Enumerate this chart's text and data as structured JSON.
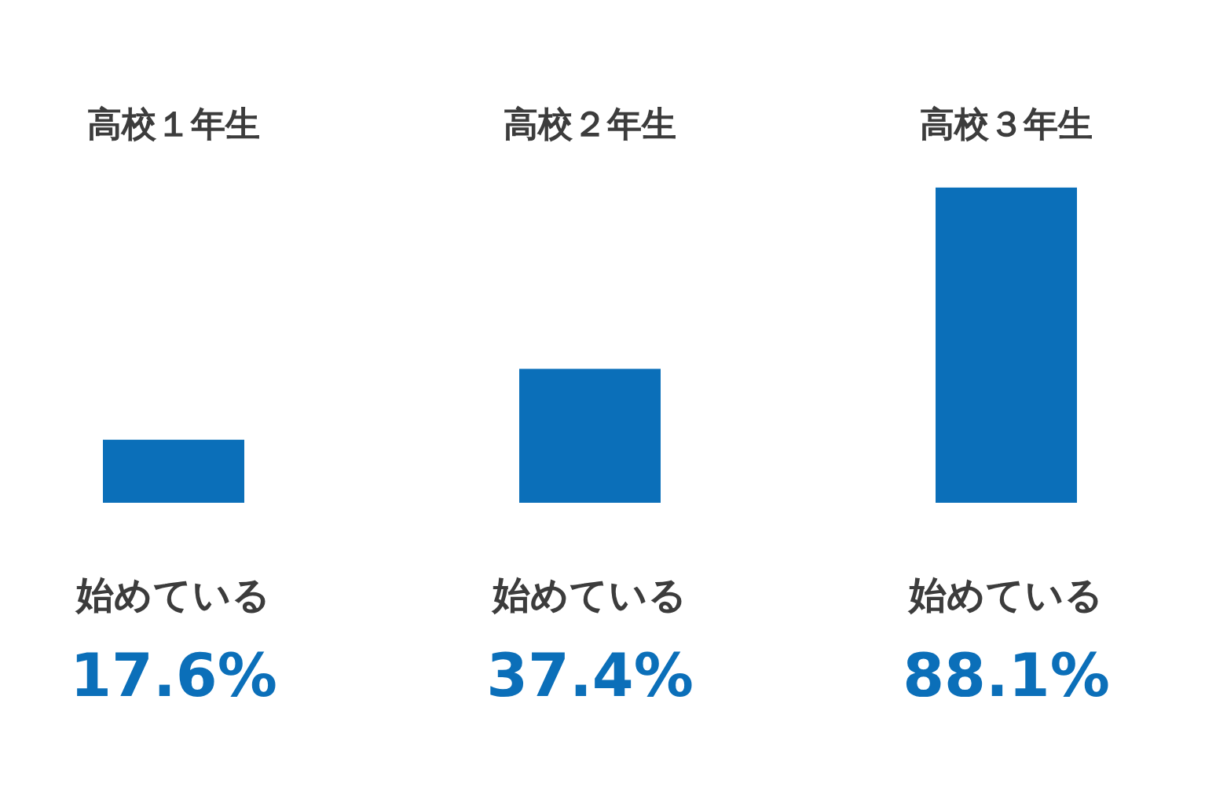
{
  "chart_data": {
    "type": "bar",
    "categories": [
      "高校１年生",
      "高校２年生",
      "高校３年生"
    ],
    "values": [
      17.6,
      37.4,
      88.1
    ],
    "color": "#0b6fb9",
    "value_labels": [
      "17.6%",
      "37.4%",
      "88.1%"
    ],
    "annotations": [
      "始めている",
      "始めている",
      "始めている"
    ],
    "tick_labels": "x"
  }
}
